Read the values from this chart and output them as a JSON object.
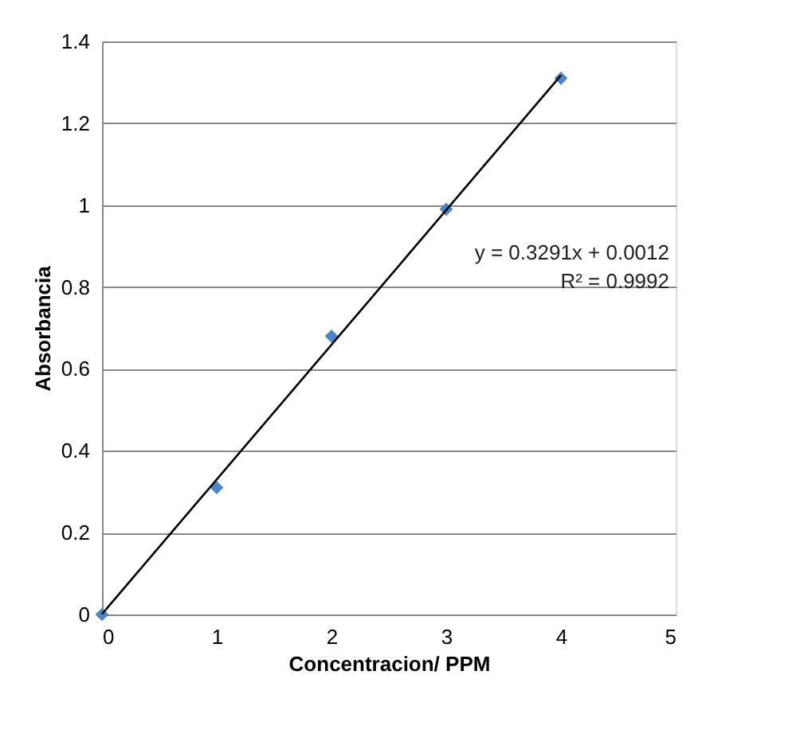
{
  "chart_data": {
    "type": "scatter",
    "xlabel": "Concentracion/ PPM",
    "ylabel": "Absorbancia",
    "xlim": [
      0,
      5
    ],
    "xticks": [
      0,
      1,
      2,
      3,
      4,
      5
    ],
    "ylim": [
      0,
      1.4
    ],
    "yticks": [
      0,
      0.2,
      0.4,
      0.6,
      0.8,
      1,
      1.2,
      1.4
    ],
    "grid": "y",
    "marker": "diamond",
    "series": [
      {
        "color": "#4a86c8",
        "x": [
          0,
          1,
          2,
          3,
          4
        ],
        "values": [
          0,
          0.31,
          0.68,
          0.99,
          1.31
        ]
      },
      {
        "type": "line",
        "color": "#000000",
        "line_style": "solid",
        "marker": "none",
        "x": [
          0,
          4
        ],
        "values": [
          0.001,
          1.317
        ]
      }
    ],
    "annotations": [
      "y = 0.3291x + 0.0012",
      "R² = 0.9992"
    ]
  }
}
